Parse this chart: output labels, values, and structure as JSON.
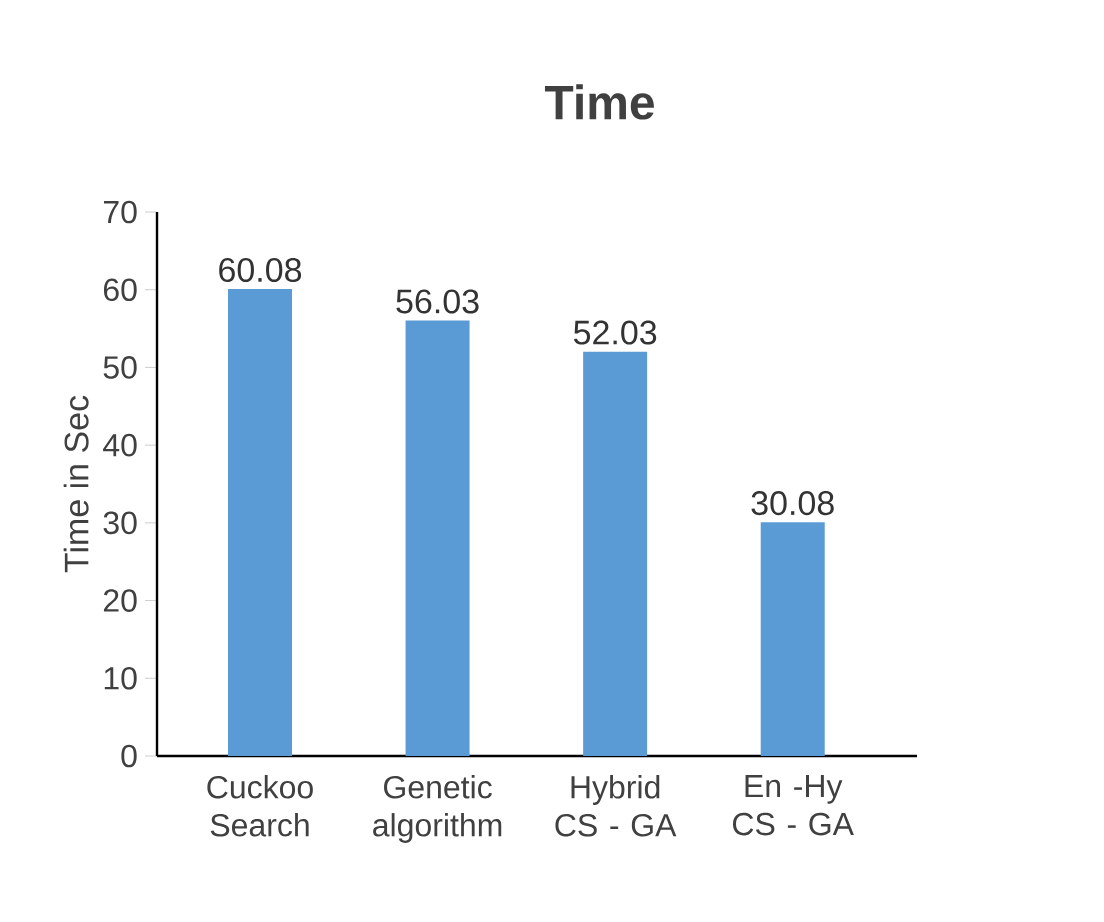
{
  "chart_data": {
    "type": "bar",
    "title": "Time",
    "ylabel": "Time in Sec",
    "categories": [
      "Cuckoo Search",
      "Genetic algorithm",
      "Hybrid CS - GA",
      "En -Hy CS - GA"
    ],
    "values": [
      60.08,
      56.03,
      52.03,
      30.08
    ],
    "color": "#5b9bd5",
    "ylim": [
      0,
      70
    ],
    "yticks": [
      0,
      10,
      20,
      30,
      40,
      50,
      60,
      70
    ],
    "grid": false,
    "data_labels": true
  }
}
